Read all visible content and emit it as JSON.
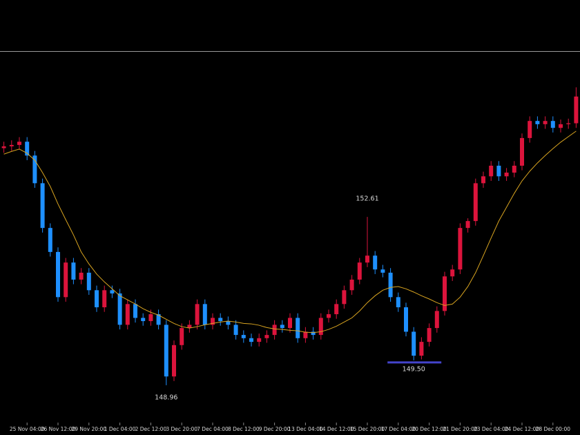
{
  "chart_data": {
    "type": "candlestick",
    "categories": [
      null,
      null,
      null,
      "25 Nov 04:00",
      null,
      null,
      null,
      "26 Nov 12:00",
      null,
      null,
      null,
      "29 Nov 20:00",
      null,
      null,
      null,
      "1 Dec 04:00",
      null,
      null,
      null,
      "2 Dec 12:00",
      null,
      null,
      null,
      "3 Dec 20:00",
      null,
      null,
      null,
      "7 Dec 04:00",
      null,
      null,
      null,
      "8 Dec 12:00",
      null,
      null,
      null,
      "9 Dec 20:00",
      null,
      null,
      null,
      "13 Dec 04:00",
      null,
      null,
      null,
      "14 Dec 12:00",
      null,
      null,
      null,
      "15 Dec 20:00",
      null,
      null,
      null,
      "17 Dec 04:00",
      null,
      null,
      null,
      "20 Dec 12:00",
      null,
      null,
      null,
      "21 Dec 20:00",
      null,
      null,
      null,
      "23 Dec 04:00",
      null,
      null,
      null,
      "24 Dec 12:00",
      null,
      null,
      null,
      "28 Dec 00:00",
      null,
      null,
      null
    ],
    "open": [
      154.1,
      154.14,
      154.17,
      154.24,
      153.94,
      153.34,
      152.37,
      151.85,
      150.87,
      151.62,
      151.25,
      151.4,
      151.02,
      150.65,
      151.02,
      150.95,
      150.27,
      150.72,
      150.42,
      150.35,
      150.5,
      150.27,
      149.15,
      149.83,
      150.2,
      150.27,
      150.72,
      150.27,
      150.42,
      150.35,
      150.27,
      150.05,
      149.98,
      149.9,
      149.98,
      150.05,
      150.27,
      150.2,
      150.42,
      149.98,
      150.12,
      150.05,
      150.42,
      150.5,
      150.72,
      151.02,
      151.25,
      151.62,
      151.77,
      151.47,
      151.4,
      150.87,
      150.65,
      150.12,
      149.6,
      149.9,
      150.2,
      150.57,
      151.32,
      151.47,
      152.37,
      152.52,
      153.34,
      153.49,
      153.72,
      153.49,
      153.57,
      153.72,
      154.32,
      154.69,
      154.62,
      154.69,
      154.54,
      154.62,
      154.64
    ],
    "high": [
      154.24,
      154.27,
      154.34,
      154.34,
      154.04,
      153.44,
      152.47,
      151.95,
      151.72,
      151.72,
      151.5,
      151.5,
      151.12,
      151.12,
      151.12,
      151.05,
      150.82,
      150.82,
      150.52,
      150.6,
      150.6,
      150.37,
      149.93,
      150.3,
      150.37,
      150.82,
      150.82,
      150.52,
      150.52,
      150.45,
      150.37,
      150.15,
      150.08,
      150.08,
      150.15,
      150.37,
      150.37,
      150.52,
      150.52,
      150.22,
      150.22,
      150.52,
      150.6,
      150.82,
      151.12,
      151.35,
      151.72,
      152.61,
      151.87,
      151.57,
      151.5,
      150.97,
      150.75,
      150.22,
      150.0,
      150.3,
      150.67,
      151.42,
      151.57,
      152.47,
      152.58,
      153.44,
      153.59,
      153.82,
      153.82,
      153.67,
      153.82,
      154.42,
      154.79,
      154.79,
      154.79,
      154.79,
      154.72,
      154.74,
      155.42
    ],
    "low": [
      154.0,
      154.04,
      154.07,
      153.84,
      153.24,
      152.27,
      151.75,
      150.77,
      150.77,
      151.15,
      151.15,
      150.92,
      150.55,
      150.55,
      150.85,
      150.17,
      150.17,
      150.32,
      150.25,
      150.25,
      150.17,
      148.96,
      149.05,
      149.73,
      150.1,
      150.17,
      150.17,
      150.17,
      150.25,
      150.17,
      149.95,
      149.88,
      149.8,
      149.8,
      149.88,
      149.95,
      150.1,
      150.1,
      149.88,
      149.88,
      149.95,
      149.95,
      150.32,
      150.4,
      150.62,
      150.92,
      151.15,
      151.52,
      151.37,
      151.3,
      150.77,
      150.55,
      150.02,
      149.5,
      149.52,
      149.8,
      150.1,
      150.47,
      151.22,
      151.37,
      152.27,
      152.42,
      153.24,
      153.39,
      153.39,
      153.39,
      153.47,
      153.62,
      154.22,
      154.52,
      154.52,
      154.44,
      154.44,
      154.52,
      154.54
    ],
    "close": [
      154.14,
      154.17,
      154.24,
      153.94,
      153.34,
      152.37,
      151.85,
      150.87,
      151.62,
      151.25,
      151.4,
      151.02,
      150.65,
      151.02,
      150.95,
      150.27,
      150.72,
      150.42,
      150.35,
      150.5,
      150.27,
      149.15,
      149.83,
      150.2,
      150.27,
      150.72,
      150.27,
      150.42,
      150.35,
      150.27,
      150.05,
      149.98,
      149.9,
      149.98,
      150.05,
      150.27,
      150.2,
      150.42,
      149.98,
      150.12,
      150.05,
      150.42,
      150.5,
      150.72,
      151.02,
      151.25,
      151.62,
      151.77,
      151.47,
      151.4,
      150.87,
      150.65,
      150.12,
      149.6,
      149.9,
      150.2,
      150.57,
      151.32,
      151.47,
      152.37,
      152.52,
      153.34,
      153.49,
      153.72,
      153.49,
      153.57,
      153.72,
      154.32,
      154.69,
      154.62,
      154.69,
      154.54,
      154.62,
      154.64,
      155.22
    ],
    "up_color": "#dc143c",
    "down_color": "#1e90ff",
    "moving_average": {
      "color": "#daa520",
      "values": [
        153.97,
        154.03,
        154.08,
        153.99,
        153.84,
        153.57,
        153.27,
        152.89,
        152.55,
        152.22,
        151.85,
        151.59,
        151.37,
        151.2,
        151.05,
        150.9,
        150.81,
        150.72,
        150.62,
        150.54,
        150.48,
        150.39,
        150.3,
        150.23,
        150.2,
        150.23,
        150.27,
        150.3,
        150.33,
        150.35,
        150.33,
        150.3,
        150.29,
        150.26,
        150.21,
        150.18,
        150.17,
        150.15,
        150.14,
        150.11,
        150.1,
        150.12,
        150.17,
        150.24,
        150.33,
        150.42,
        150.57,
        150.75,
        150.9,
        151.02,
        151.08,
        151.1,
        151.05,
        150.98,
        150.9,
        150.83,
        150.75,
        150.69,
        150.72,
        150.87,
        151.1,
        151.4,
        151.77,
        152.15,
        152.52,
        152.82,
        153.12,
        153.39,
        153.6,
        153.78,
        153.94,
        154.09,
        154.23,
        154.35,
        154.47
      ]
    },
    "annotations": [
      152.61,
      148.96,
      {
        "value": 149.5,
        "label": "149.50"
      }
    ],
    "level_color": "#4444cc",
    "ylim": [
      148.15,
      156.19
    ]
  }
}
